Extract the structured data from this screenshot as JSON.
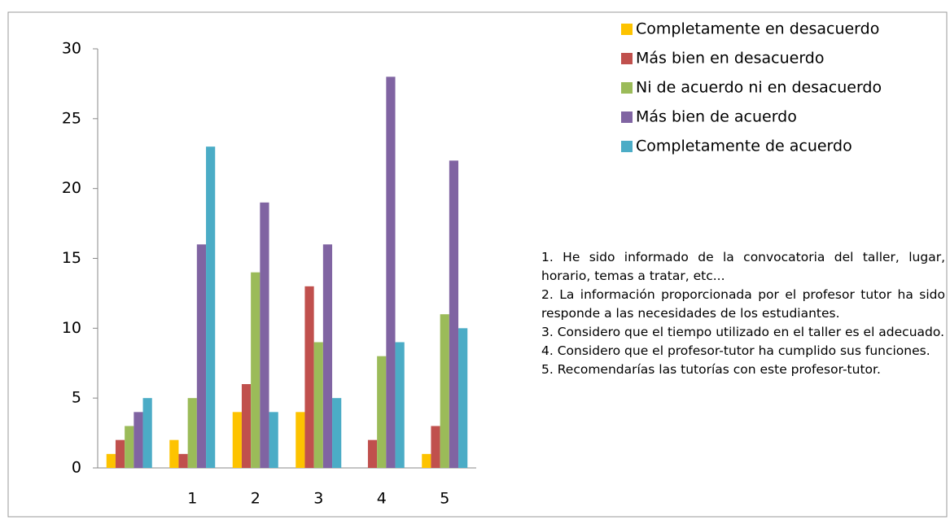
{
  "chart_data": {
    "type": "bar",
    "categories": [
      null,
      "1",
      "2",
      "3",
      "4",
      "5"
    ],
    "series": [
      {
        "name": "Completamente en desacuerdo",
        "color": "#fdc300",
        "values": [
          1,
          2,
          4,
          4,
          0,
          1
        ]
      },
      {
        "name": "Más bien en desacuerdo",
        "color": "#c0504d",
        "values": [
          2,
          1,
          6,
          13,
          2,
          3
        ]
      },
      {
        "name": "Ni de acuerdo ni en desacuerdo",
        "color": "#9bbb59",
        "values": [
          3,
          5,
          14,
          9,
          8,
          11
        ]
      },
      {
        "name": "Más bien de acuerdo",
        "color": "#8064a2",
        "values": [
          4,
          16,
          19,
          16,
          28,
          22
        ]
      },
      {
        "name": "Completamente de acuerdo",
        "color": "#4bacc6",
        "values": [
          5,
          23,
          4,
          5,
          9,
          10
        ]
      }
    ],
    "ylim": [
      0,
      30
    ],
    "yticks": [
      0,
      5,
      10,
      15,
      20,
      25,
      30
    ],
    "grid": false,
    "legend": "top-right",
    "notes": [
      "1. He sido informado de la convocatoria del taller, lugar, horario, temas a tratar, etc...",
      "2. La información proporcionada por el profesor tutor ha sido responde a las necesidades de los estudiantes.",
      "3. Considero que el tiempo utilizado en el taller es el adecuado.",
      "4. Considero que el profesor-tutor ha cumplido sus funciones.",
      "5. Recomendarías las tutorías con este profesor-tutor."
    ]
  }
}
